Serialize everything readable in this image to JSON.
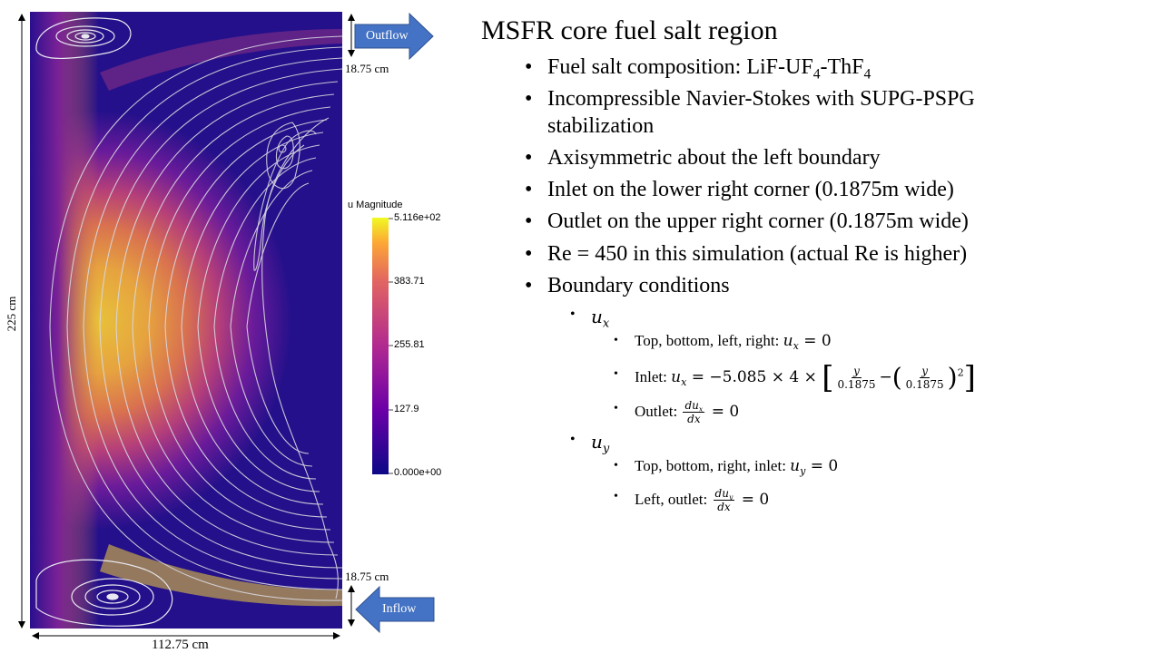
{
  "figure": {
    "outflow_label": "Outflow",
    "inflow_label": "Inflow",
    "outflow_width_label": "18.75 cm",
    "inflow_width_label": "18.75 cm",
    "height_label": "225 cm",
    "width_label": "112.75 cm",
    "colorbar": {
      "title": "u Magnitude",
      "ticks": [
        "5.116e+02",
        "383.71",
        "255.81",
        "127.9",
        "0.000e+00"
      ]
    },
    "colors": {
      "arrow": "#4472C4",
      "field_low": "#0d0887",
      "field_high": "#f0f921",
      "streamline": "#d8d8e0"
    }
  },
  "slide": {
    "title": "MSFR core fuel salt region",
    "bullets": {
      "composition_prefix": "Fuel salt composition: LiF-UF",
      "composition_sub1": "4",
      "composition_mid": "-ThF",
      "composition_sub2": "4",
      "navier_stokes": "Incompressible Navier-Stokes with SUPG-PSPG stabilization",
      "axisymmetric": "Axisymmetric about the left boundary",
      "inlet": "Inlet on the lower right corner (0.1875m wide)",
      "outlet": "Outlet on the upper right corner (0.1875m wide)",
      "reynolds": "Re = 450 in this simulation (actual Re is higher)",
      "boundary_conditions": "Boundary conditions"
    },
    "ux": {
      "var": "u",
      "sub": "x",
      "walls_label": "Top, bottom, left, right:",
      "inlet_label": "Inlet:",
      "inlet_coef": "= −5.085 × 4 ×",
      "denominator": "0.1875",
      "outlet_label": "Outlet:"
    },
    "uy": {
      "var": "u",
      "sub": "y",
      "walls_label": "Top, bottom, right, inlet:",
      "outlet_label": "Left, outlet:"
    },
    "math": {
      "equals_zero": "= 0",
      "y": "y",
      "du": "du",
      "dx": "dx",
      "minus": "−",
      "square": "2"
    }
  }
}
